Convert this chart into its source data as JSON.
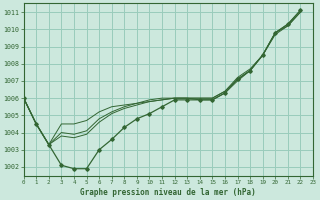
{
  "background_color": "#cce8dd",
  "grid_color": "#99ccbb",
  "line_color": "#336633",
  "title": "Graphe pression niveau de la mer (hPa)",
  "xlim": [
    0,
    23
  ],
  "ylim": [
    1001.5,
    1011.5
  ],
  "yticks": [
    1002,
    1003,
    1004,
    1005,
    1006,
    1007,
    1008,
    1009,
    1010,
    1011
  ],
  "xticks": [
    0,
    1,
    2,
    3,
    4,
    5,
    6,
    7,
    8,
    9,
    10,
    11,
    12,
    13,
    14,
    15,
    16,
    17,
    18,
    19,
    20,
    21,
    22,
    23
  ],
  "series": [
    [
      1006.0,
      1004.5,
      1003.3,
      1002.1,
      1001.9,
      1001.9,
      1003.0,
      1003.6,
      1004.3,
      1004.8,
      1005.1,
      1005.5,
      1005.9,
      1005.9,
      1005.9,
      1005.9,
      1006.3,
      1007.1,
      1007.6,
      1008.5,
      1009.8,
      1010.3,
      1011.1,
      null
    ],
    [
      1006.0,
      1004.5,
      1003.3,
      1004.5,
      1004.5,
      1004.7,
      1005.2,
      1005.5,
      1005.6,
      1005.7,
      1005.8,
      1005.9,
      1006.0,
      1006.0,
      1006.0,
      1006.0,
      1006.4,
      1007.2,
      1007.7,
      1008.5,
      1009.8,
      1010.3,
      1011.1,
      null
    ],
    [
      1006.0,
      1004.5,
      1003.3,
      1003.8,
      1003.7,
      1003.9,
      1004.6,
      1005.1,
      1005.4,
      1005.6,
      1005.8,
      1005.9,
      1006.0,
      1006.0,
      1005.9,
      1005.9,
      1006.3,
      1007.0,
      1007.6,
      1008.5,
      1009.7,
      1010.2,
      1011.0,
      null
    ],
    [
      1006.0,
      1004.5,
      1003.3,
      1004.0,
      1003.9,
      1004.1,
      1004.8,
      1005.2,
      1005.5,
      1005.7,
      1005.9,
      1006.0,
      1006.0,
      1006.0,
      1006.0,
      1006.0,
      1006.4,
      1007.1,
      1007.6,
      1008.5,
      1009.8,
      1010.2,
      1011.0,
      null
    ]
  ]
}
